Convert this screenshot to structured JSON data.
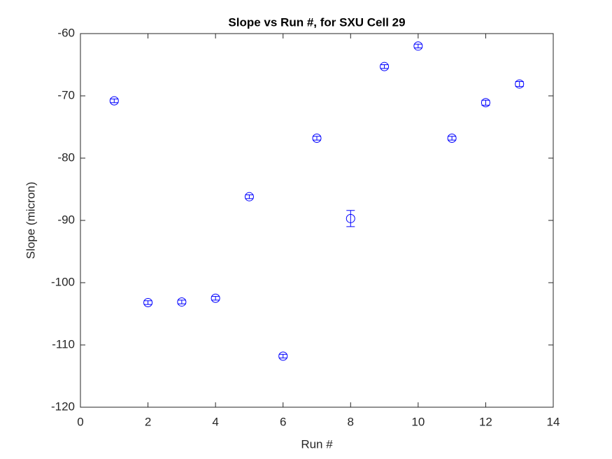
{
  "chart_data": {
    "type": "errorbar",
    "title": "Slope vs Run #, for SXU Cell 29",
    "x_label": "Run #",
    "y_label": "Slope (micron)",
    "x": [
      1,
      2,
      3,
      4,
      5,
      6,
      7,
      8,
      9,
      10,
      11,
      12,
      13
    ],
    "values": [
      -70.8,
      -103.2,
      -103.1,
      -102.5,
      -86.2,
      -111.8,
      -76.8,
      -89.7,
      -65.3,
      -62.0,
      -76.8,
      -71.1,
      -68.1
    ],
    "errors": [
      0.3,
      0.3,
      0.3,
      0.3,
      0.3,
      0.3,
      0.3,
      1.3,
      0.3,
      0.3,
      0.3,
      0.4,
      0.4
    ],
    "color": "#0000ff",
    "xlim": [
      0,
      14
    ],
    "xticks": [
      0,
      2,
      4,
      6,
      8,
      10,
      12,
      14
    ],
    "ylim": [
      -120,
      -60
    ],
    "yticks": [
      -120,
      -110,
      -100,
      -90,
      -80,
      -70,
      -60
    ],
    "grid": false
  }
}
